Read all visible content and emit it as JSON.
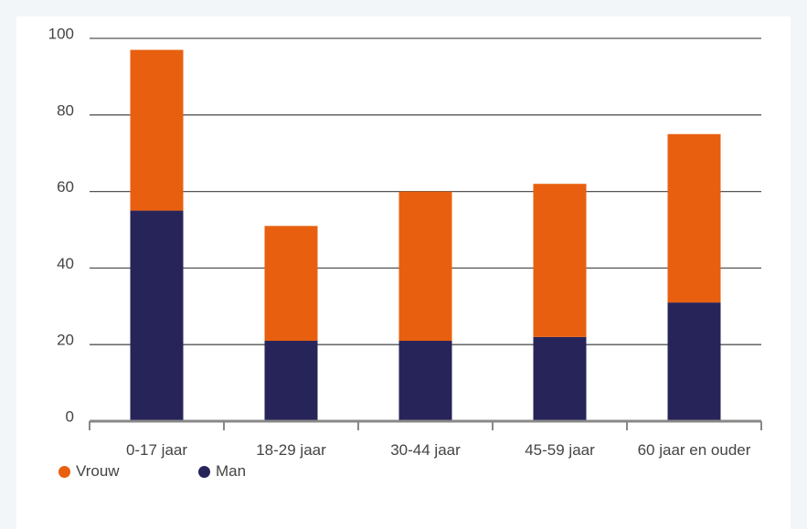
{
  "chart_data": {
    "type": "stacked_bar",
    "categories": [
      "0-17 jaar",
      "18-29 jaar",
      "30-44 jaar",
      "45-59 jaar",
      "60 jaar en ouder"
    ],
    "series": [
      {
        "name": "Vrouw",
        "color": "#e8600f",
        "values": [
          42,
          30,
          39,
          40,
          44
        ]
      },
      {
        "name": "Man",
        "color": "#27245a",
        "values": [
          55,
          21,
          21,
          22,
          31
        ]
      }
    ],
    "ylim": [
      0,
      100
    ],
    "yticks": [
      0,
      20,
      40,
      60,
      80,
      100
    ],
    "grid": true,
    "legend": "bottom-left"
  }
}
